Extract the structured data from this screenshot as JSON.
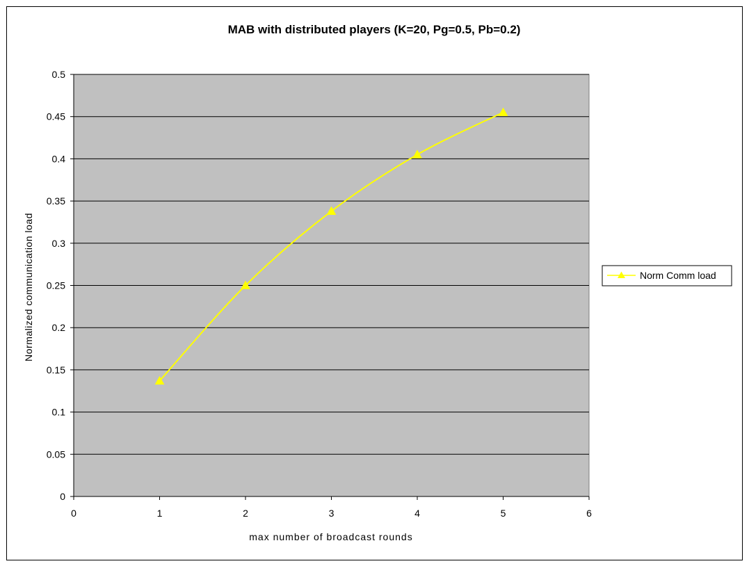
{
  "chart_data": {
    "type": "line",
    "title": "MAB with distributed players (K=20, Pg=0.5, Pb=0.2)",
    "xlabel": "max number of broadcast rounds",
    "ylabel": "Normalized communication load",
    "xlim": [
      0,
      6
    ],
    "ylim": [
      0,
      0.5
    ],
    "x_ticks": [
      0,
      1,
      2,
      3,
      4,
      5,
      6
    ],
    "y_ticks": [
      0,
      0.05,
      0.1,
      0.15,
      0.2,
      0.25,
      0.3,
      0.35,
      0.4,
      0.45,
      0.5
    ],
    "x_tick_labels": [
      "0",
      "1",
      "2",
      "3",
      "4",
      "5",
      "6"
    ],
    "y_tick_labels": [
      "0",
      "0.05",
      "0.1",
      "0.15",
      "0.2",
      "0.25",
      "0.3",
      "0.35",
      "0.4",
      "0.45",
      "0.5"
    ],
    "grid": "horizontal",
    "legend_position": "right",
    "plot_background": "#C0C0C0",
    "series": [
      {
        "name": "Norm Comm load",
        "color": "#FFFF00",
        "marker": "triangle",
        "x": [
          1,
          2,
          3,
          4,
          5
        ],
        "y": [
          0.137,
          0.25,
          0.338,
          0.405,
          0.455
        ]
      }
    ]
  }
}
